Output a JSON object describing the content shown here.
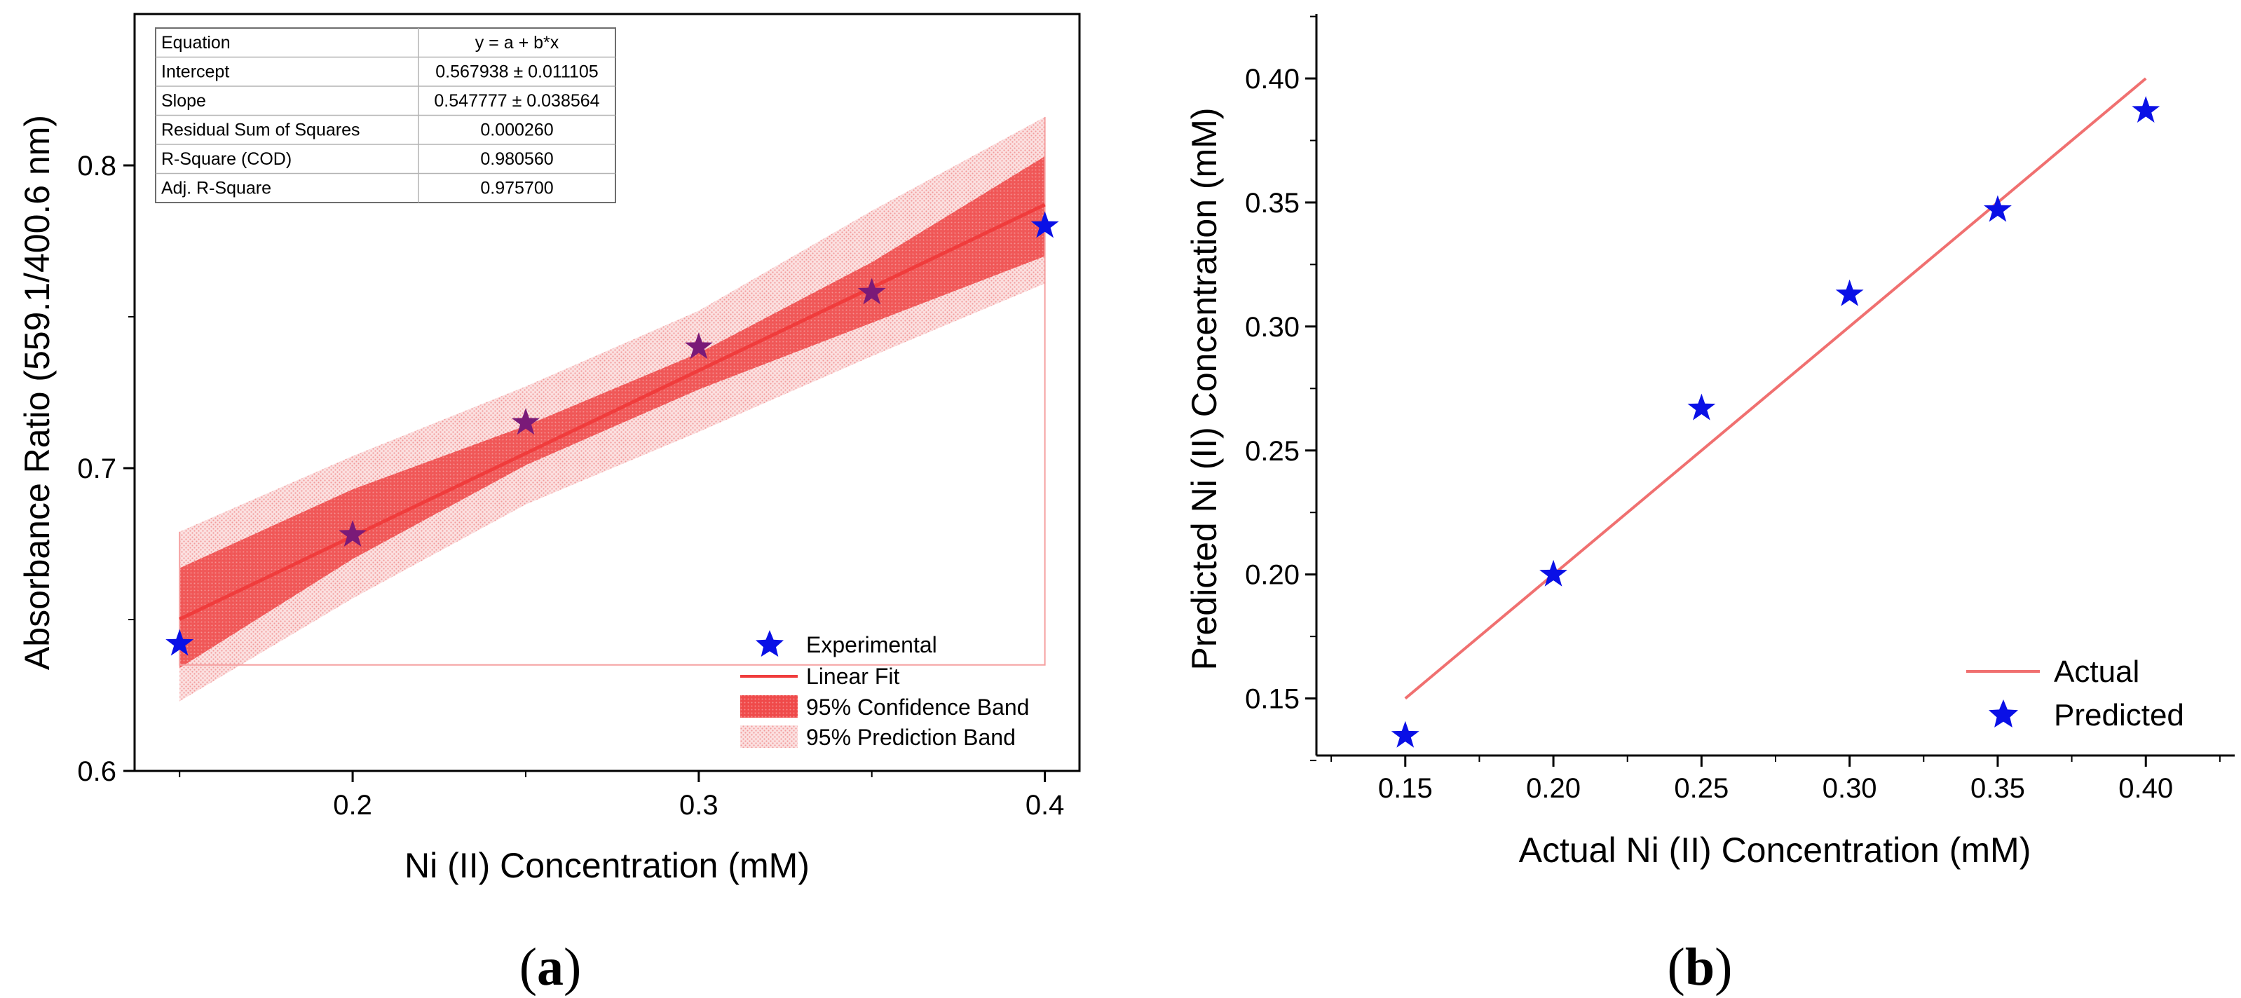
{
  "chart_data": [
    {
      "type": "scatter",
      "panel_label": "(a)",
      "panel_letter": "a",
      "xlabel": "Ni (II) Concentration (mM)",
      "ylabel": "Absorbance Ratio (559.1/400.6 nm)",
      "xlim": [
        0.137,
        0.41
      ],
      "ylim": [
        0.6,
        0.85
      ],
      "xticks": [
        0.2,
        0.3,
        0.4
      ],
      "xtick_labels": [
        "0.2",
        "0.3",
        "0.4"
      ],
      "yticks": [
        0.6,
        0.7,
        0.8
      ],
      "ytick_labels": [
        "0.6",
        "0.7",
        "0.8"
      ],
      "grid": false,
      "legend_position": "bottom-right",
      "series": [
        {
          "name": "Experimental",
          "kind": "scatter",
          "color": "#0a10e6",
          "x": [
            0.15,
            0.2,
            0.25,
            0.3,
            0.35,
            0.4
          ],
          "y": [
            0.642,
            0.678,
            0.715,
            0.74,
            0.758,
            0.78
          ]
        },
        {
          "name": "Linear Fit",
          "kind": "line",
          "color": "#f03c3c",
          "x": [
            0.15,
            0.4
          ],
          "y": [
            0.650105,
            0.787049
          ]
        },
        {
          "name": "95% Confidence Band",
          "kind": "band",
          "color": "#f03c3c",
          "x": [
            0.15,
            0.2,
            0.25,
            0.3,
            0.35,
            0.4
          ],
          "lower": [
            0.634,
            0.67,
            0.701,
            0.726,
            0.748,
            0.77
          ],
          "upper": [
            0.667,
            0.693,
            0.714,
            0.738,
            0.768,
            0.803
          ]
        },
        {
          "name": "95% Prediction Band",
          "kind": "band",
          "color": "#f7b8b8",
          "x": [
            0.15,
            0.2,
            0.25,
            0.3,
            0.35,
            0.4
          ],
          "lower": [
            0.623,
            0.657,
            0.688,
            0.712,
            0.737,
            0.761
          ],
          "upper": [
            0.679,
            0.704,
            0.727,
            0.752,
            0.785,
            0.816
          ]
        }
      ],
      "fit_table": {
        "rows": [
          {
            "label": "Equation",
            "value": "y = a + b*x"
          },
          {
            "label": "Intercept",
            "value": "0.567938 ± 0.011105"
          },
          {
            "label": "Slope",
            "value": "0.547777 ± 0.038564"
          },
          {
            "label": "Residual Sum of Squares",
            "value": "0.000260"
          },
          {
            "label": "R-Square (COD)",
            "value": "0.980560"
          },
          {
            "label": "Adj. R-Square",
            "value": "0.975700"
          }
        ]
      }
    },
    {
      "type": "scatter",
      "panel_label": "(b)",
      "panel_letter": "b",
      "xlabel": "Actual Ni (II) Concentration (mM)",
      "ylabel": "Predicted Ni (II) Concentration (mM)",
      "xlim": [
        0.12,
        0.43
      ],
      "ylim": [
        0.127,
        0.426
      ],
      "xticks": [
        0.15,
        0.2,
        0.25,
        0.3,
        0.35,
        0.4
      ],
      "xtick_labels": [
        "0.15",
        "0.20",
        "0.25",
        "0.30",
        "0.35",
        "0.40"
      ],
      "yticks": [
        0.15,
        0.2,
        0.25,
        0.3,
        0.35,
        0.4
      ],
      "ytick_labels": [
        "0.15",
        "0.20",
        "0.25",
        "0.30",
        "0.35",
        "0.40"
      ],
      "grid": false,
      "legend_position": "bottom-right",
      "series": [
        {
          "name": "Actual",
          "kind": "line",
          "color": "#f07070",
          "x": [
            0.15,
            0.4
          ],
          "y": [
            0.15,
            0.4
          ]
        },
        {
          "name": "Predicted",
          "kind": "scatter",
          "color": "#0a10e6",
          "x": [
            0.15,
            0.2,
            0.25,
            0.3,
            0.35,
            0.4
          ],
          "y": [
            0.135,
            0.2,
            0.267,
            0.313,
            0.347,
            0.387
          ]
        }
      ]
    }
  ]
}
